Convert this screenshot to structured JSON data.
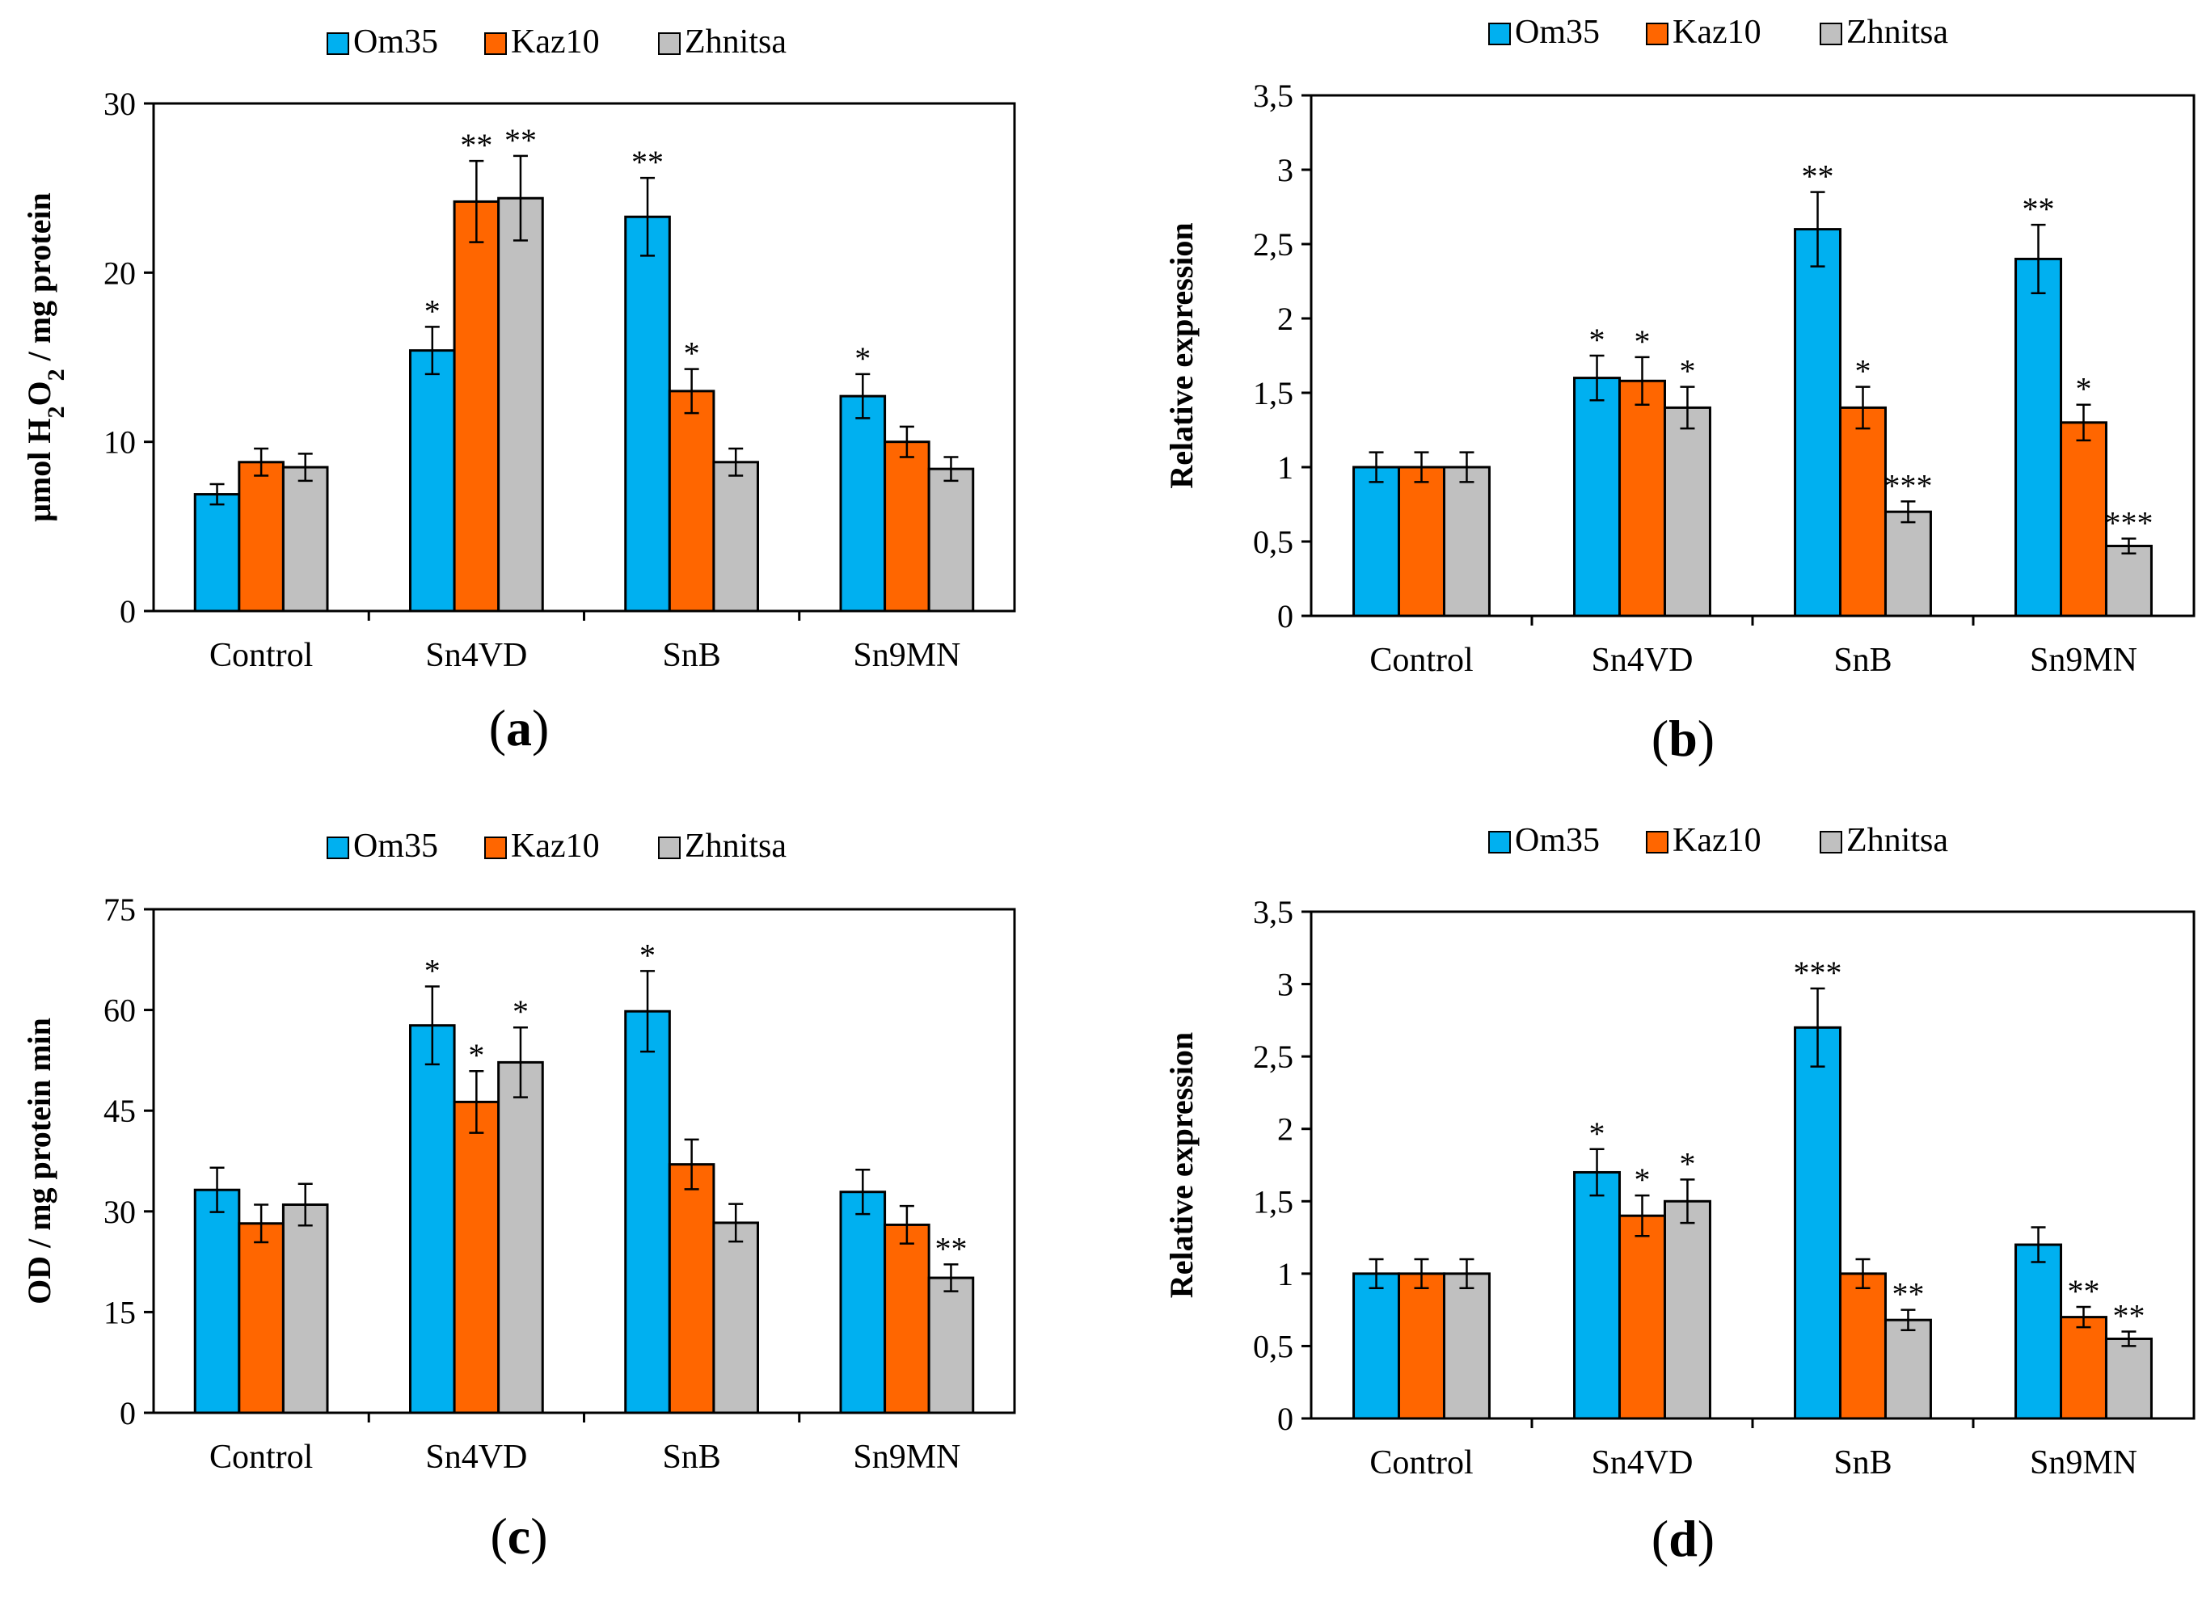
{
  "colors": {
    "Om35": "#00b0f0",
    "Kaz10": "#ff6600",
    "Zhnitsa": "#c0c0c0"
  },
  "chart_data": [
    {
      "id": "a",
      "panel_label": "a",
      "type": "bar",
      "categories": [
        "Control",
        "Sn4VD",
        "SnB",
        "Sn9MN"
      ],
      "ylabel_parts": [
        "μmol H",
        "2",
        "O",
        "2",
        " / mg protein"
      ],
      "ylim": [
        0,
        30
      ],
      "yticks": [
        "0",
        "10",
        "20",
        "30"
      ],
      "ytick_values": [
        0,
        10,
        20,
        30
      ],
      "legend": [
        "Om35",
        "Kaz10",
        "Zhnitsa"
      ],
      "series": [
        {
          "name": "Om35",
          "values": [
            6.9,
            15.4,
            23.3,
            12.7
          ],
          "errors": [
            0.6,
            1.4,
            2.3,
            1.3
          ],
          "marks": [
            "",
            "*",
            "**",
            "*"
          ]
        },
        {
          "name": "Kaz10",
          "values": [
            8.8,
            24.2,
            13.0,
            10.0
          ],
          "errors": [
            0.8,
            2.4,
            1.3,
            0.9
          ],
          "marks": [
            "",
            "**",
            "*",
            ""
          ]
        },
        {
          "name": "Zhnitsa",
          "values": [
            8.5,
            24.4,
            8.8,
            8.4
          ],
          "errors": [
            0.8,
            2.5,
            0.8,
            0.7
          ],
          "marks": [
            "",
            "**",
            "",
            ""
          ]
        }
      ]
    },
    {
      "id": "b",
      "panel_label": "b",
      "type": "bar",
      "categories": [
        "Control",
        "Sn4VD",
        "SnB",
        "Sn9MN"
      ],
      "ylabel": "Relative expression",
      "ylim": [
        0,
        3.5
      ],
      "yticks": [
        "0",
        "0,5",
        "1",
        "1,5",
        "2",
        "2,5",
        "3",
        "3,5"
      ],
      "ytick_values": [
        0,
        0.5,
        1,
        1.5,
        2,
        2.5,
        3,
        3.5
      ],
      "legend": [
        "Om35",
        "Kaz10",
        "Zhnitsa"
      ],
      "series": [
        {
          "name": "Om35",
          "values": [
            1.0,
            1.6,
            2.6,
            2.4
          ],
          "errors": [
            0.1,
            0.15,
            0.25,
            0.23
          ],
          "marks": [
            "",
            "*",
            "**",
            "**"
          ]
        },
        {
          "name": "Kaz10",
          "values": [
            1.0,
            1.58,
            1.4,
            1.3
          ],
          "errors": [
            0.1,
            0.16,
            0.14,
            0.12
          ],
          "marks": [
            "",
            "*",
            "*",
            "*"
          ]
        },
        {
          "name": "Zhnitsa",
          "values": [
            1.0,
            1.4,
            0.7,
            0.47
          ],
          "errors": [
            0.1,
            0.14,
            0.07,
            0.05
          ],
          "marks": [
            "",
            "*",
            "***",
            "***"
          ]
        }
      ]
    },
    {
      "id": "c",
      "panel_label": "c",
      "type": "bar",
      "categories": [
        "Control",
        "Sn4VD",
        "SnB",
        "Sn9MN"
      ],
      "ylabel": "OD / mg protein min",
      "ylim": [
        0,
        75
      ],
      "yticks": [
        "0",
        "15",
        "30",
        "45",
        "60",
        "75"
      ],
      "ytick_values": [
        0,
        15,
        30,
        45,
        60,
        75
      ],
      "legend": [
        "Om35",
        "Kaz10",
        "Zhnitsa"
      ],
      "series": [
        {
          "name": "Om35",
          "values": [
            33.2,
            57.7,
            59.8,
            32.9
          ],
          "errors": [
            3.3,
            5.8,
            6.0,
            3.3
          ],
          "marks": [
            "",
            "*",
            "*",
            ""
          ]
        },
        {
          "name": "Kaz10",
          "values": [
            28.2,
            46.3,
            37.0,
            28.0
          ],
          "errors": [
            2.8,
            4.6,
            3.7,
            2.8
          ],
          "marks": [
            "",
            "*",
            "",
            ""
          ]
        },
        {
          "name": "Zhnitsa",
          "values": [
            31.0,
            52.2,
            28.3,
            20.1
          ],
          "errors": [
            3.1,
            5.2,
            2.8,
            2.0
          ],
          "marks": [
            "",
            "*",
            "",
            "**"
          ]
        }
      ]
    },
    {
      "id": "d",
      "panel_label": "d",
      "type": "bar",
      "categories": [
        "Control",
        "Sn4VD",
        "SnB",
        "Sn9MN"
      ],
      "ylabel": "Relative expression",
      "ylim": [
        0,
        3.5
      ],
      "yticks": [
        "0",
        "0,5",
        "1",
        "1,5",
        "2",
        "2,5",
        "3",
        "3,5"
      ],
      "ytick_values": [
        0,
        0.5,
        1,
        1.5,
        2,
        2.5,
        3,
        3.5
      ],
      "legend": [
        "Om35",
        "Kaz10",
        "Zhnitsa"
      ],
      "series": [
        {
          "name": "Om35",
          "values": [
            1.0,
            1.7,
            2.7,
            1.2
          ],
          "errors": [
            0.1,
            0.16,
            0.27,
            0.12
          ],
          "marks": [
            "",
            "*",
            "***",
            ""
          ]
        },
        {
          "name": "Kaz10",
          "values": [
            1.0,
            1.4,
            1.0,
            0.7
          ],
          "errors": [
            0.1,
            0.14,
            0.1,
            0.07
          ],
          "marks": [
            "",
            "*",
            "",
            "**"
          ]
        },
        {
          "name": "Zhnitsa",
          "values": [
            1.0,
            1.5,
            0.68,
            0.55
          ],
          "errors": [
            0.1,
            0.15,
            0.07,
            0.05
          ],
          "marks": [
            "",
            "*",
            "**",
            "**"
          ]
        }
      ]
    }
  ]
}
